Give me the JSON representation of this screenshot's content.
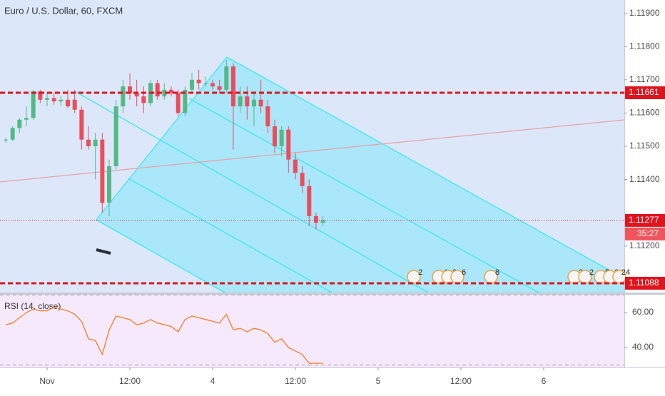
{
  "chart_data": {
    "type": "candlestick",
    "title": "Euro / U.S. Dollar, 60, FXCM",
    "x": [
      -6,
      -5,
      -4,
      -3,
      -2,
      -1,
      0,
      1,
      2,
      3,
      4,
      5,
      6,
      7,
      8,
      9,
      10,
      11,
      12,
      13,
      14,
      15,
      16,
      17,
      18,
      19,
      20,
      21,
      22,
      23,
      24,
      25,
      26,
      27,
      28,
      29,
      30,
      31,
      32,
      33,
      34,
      35,
      36,
      37,
      38,
      39,
      40
    ],
    "open": [
      1.11518,
      1.1152,
      1.11555,
      1.1158,
      1.11585,
      1.11665,
      1.1164,
      1.11645,
      1.11635,
      1.1164,
      1.1164,
      1.1161,
      1.1152,
      1.115,
      1.1152,
      1.1133,
      1.1144,
      1.1162,
      1.1168,
      1.1166,
      1.1165,
      1.1163,
      1.1169,
      1.1165,
      1.1167,
      1.1166,
      1.116,
      1.1167,
      1.117,
      1.1169,
      1.1169,
      1.1168,
      1.1167,
      1.1174,
      1.1162,
      1.1165,
      1.1162,
      1.1164,
      1.1162,
      1.1156,
      1.115,
      1.1155,
      1.1146,
      1.1142,
      1.1138,
      1.1129,
      1.1127
    ],
    "high": [
      1.11525,
      1.1156,
      1.11585,
      1.1162,
      1.1167,
      1.1167,
      1.1166,
      1.1166,
      1.1165,
      1.1167,
      1.1167,
      1.1162,
      1.1156,
      1.1154,
      1.1154,
      1.1146,
      1.1164,
      1.117,
      1.1172,
      1.117,
      1.1168,
      1.117,
      1.117,
      1.1169,
      1.1168,
      1.1167,
      1.1168,
      1.1172,
      1.1173,
      1.1171,
      1.117,
      1.117,
      1.1176,
      1.1175,
      1.1168,
      1.1168,
      1.1166,
      1.117,
      1.1164,
      1.1158,
      1.1156,
      1.1156,
      1.1148,
      1.1144,
      1.114,
      1.113,
      1.1129
    ],
    "low": [
      1.1151,
      1.11515,
      1.1154,
      1.1156,
      1.1158,
      1.1163,
      1.1162,
      1.11625,
      1.1162,
      1.11615,
      1.116,
      1.1149,
      1.1149,
      1.114,
      1.113,
      1.1129,
      1.1143,
      1.116,
      1.1164,
      1.1162,
      1.116,
      1.1162,
      1.1164,
      1.1164,
      1.1165,
      1.1159,
      1.1159,
      1.1166,
      1.1167,
      1.1168,
      1.1167,
      1.1166,
      1.1166,
      1.1149,
      1.116,
      1.1158,
      1.1156,
      1.116,
      1.1154,
      1.1148,
      1.1147,
      1.1142,
      1.114,
      1.1136,
      1.1126,
      1.1125,
      1.1126
    ],
    "close": [
      1.1152,
      1.11555,
      1.1158,
      1.11585,
      1.11665,
      1.1164,
      1.11645,
      1.11635,
      1.1164,
      1.1162,
      1.1161,
      1.1152,
      1.115,
      1.1152,
      1.1133,
      1.1144,
      1.1162,
      1.1168,
      1.1166,
      1.1165,
      1.1163,
      1.1169,
      1.1165,
      1.1167,
      1.1166,
      1.116,
      1.1167,
      1.117,
      1.1169,
      1.1169,
      1.1168,
      1.1167,
      1.1174,
      1.1162,
      1.1165,
      1.1162,
      1.1164,
      1.1162,
      1.1156,
      1.115,
      1.1155,
      1.1146,
      1.1142,
      1.1138,
      1.1129,
      1.1127,
      1.11277
    ],
    "up_color": "#53b987",
    "down_color": "#eb4d5c",
    "xlim": [
      -6.83,
      83.7
    ],
    "xticks": [
      {
        "value": 0,
        "label": "Nov"
      },
      {
        "value": 12,
        "label": "12:00"
      },
      {
        "value": 24,
        "label": "4"
      },
      {
        "value": 36,
        "label": "12:00"
      },
      {
        "value": 48,
        "label": "5"
      },
      {
        "value": 60,
        "label": "12:00"
      },
      {
        "value": 72,
        "label": "6"
      }
    ],
    "ylim": [
      1.1106,
      1.1194
    ],
    "yticks": [
      {
        "value": 1.119,
        "label": "1.11900"
      },
      {
        "value": 1.118,
        "label": "1.11800"
      },
      {
        "value": 1.117,
        "label": "1.11700"
      },
      {
        "value": 1.116,
        "label": "1.11600"
      },
      {
        "value": 1.115,
        "label": "1.11500"
      },
      {
        "value": 1.114,
        "label": "1.11400"
      },
      {
        "value": 1.112,
        "label": "1.11200"
      }
    ],
    "price_lines": [
      {
        "value": 1.11661,
        "color": "#e0141e"
      },
      {
        "value": 1.11088,
        "color": "#e0141e"
      }
    ],
    "last_price": 1.11277,
    "countdown": "35:27",
    "events": [
      "2",
      "4",
      "2",
      "6",
      "8",
      "2",
      "2",
      "5",
      "2",
      "24"
    ],
    "rsi": {
      "name": "RSI (14, close)",
      "color": "#f57f2a",
      "values": [
        53,
        54,
        57,
        60,
        62,
        61,
        61,
        63,
        62,
        61,
        59,
        55,
        45,
        44,
        36,
        50,
        58,
        57,
        56,
        53,
        54,
        56,
        54,
        53,
        52,
        49,
        56,
        58,
        57,
        56,
        55,
        54,
        59,
        50,
        51,
        49,
        51,
        50,
        48,
        43,
        45,
        40,
        38,
        36,
        31,
        31,
        31
      ],
      "ylim": [
        28.6,
        70.2
      ],
      "yticks": [
        {
          "value": 60,
          "label": "60.00"
        },
        {
          "value": 40,
          "label": "40.00"
        }
      ],
      "bands": [
        70,
        30
      ]
    }
  }
}
